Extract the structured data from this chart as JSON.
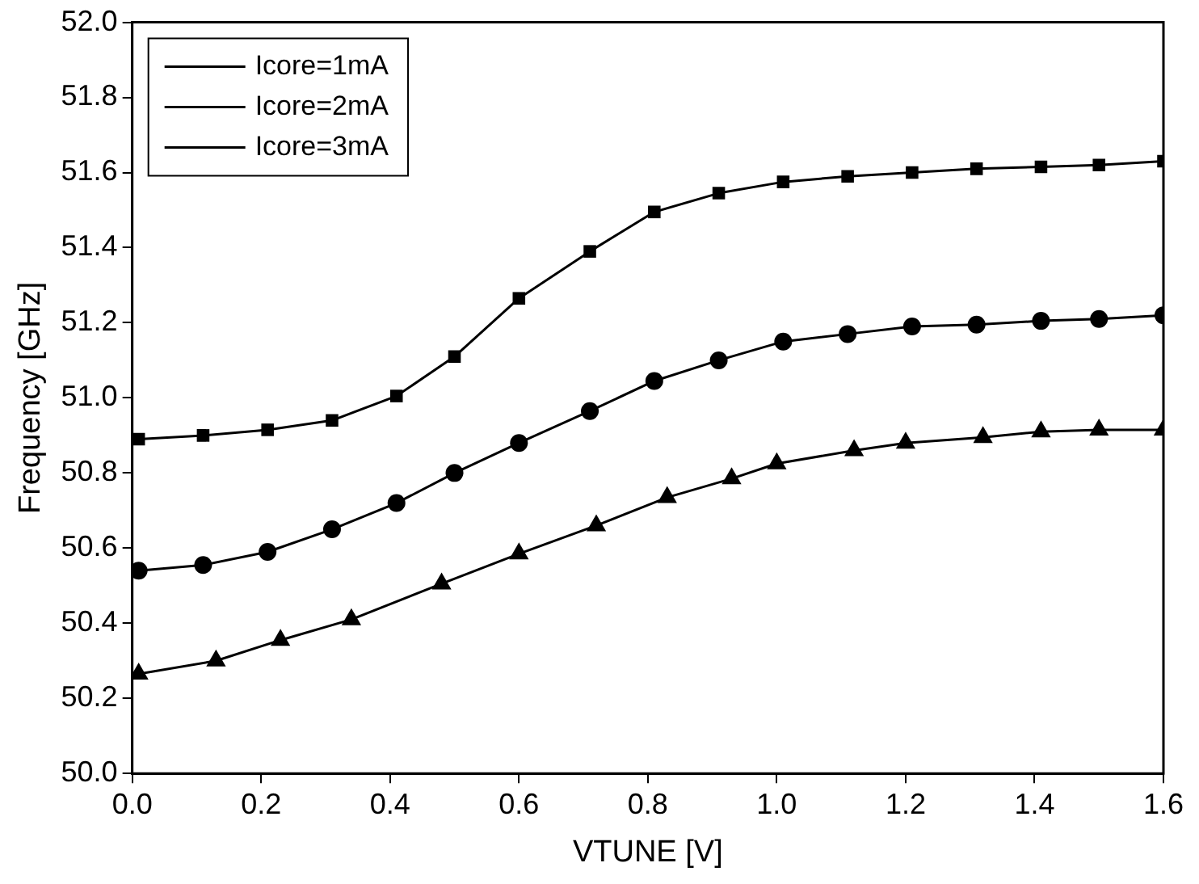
{
  "chart_data": {
    "type": "line",
    "xlabel": "VTUNE [V]",
    "ylabel": "Frequency [GHz]",
    "xlim": [
      0,
      1.6
    ],
    "xticks": [
      {
        "value": 0,
        "label": "0.0"
      },
      {
        "value": 0.2,
        "label": "0.2"
      },
      {
        "value": 0.4,
        "label": "0.4"
      },
      {
        "value": 0.6,
        "label": "0.6"
      },
      {
        "value": 0.8,
        "label": "0.8"
      },
      {
        "value": 1,
        "label": "1.0"
      },
      {
        "value": 1.2,
        "label": "1.2"
      },
      {
        "value": 1.4,
        "label": "1.4"
      },
      {
        "value": 1.6,
        "label": "1.6"
      }
    ],
    "ylim": [
      50,
      52
    ],
    "yticks": [
      {
        "value": 50,
        "label": "50.0"
      },
      {
        "value": 50.2,
        "label": "50.2"
      },
      {
        "value": 50.4,
        "label": "50.4"
      },
      {
        "value": 50.6,
        "label": "50.6"
      },
      {
        "value": 50.8,
        "label": "50.8"
      },
      {
        "value": 51,
        "label": "51.0"
      },
      {
        "value": 51.2,
        "label": "51.2"
      },
      {
        "value": 51.4,
        "label": "51.4"
      },
      {
        "value": 51.6,
        "label": "51.6"
      },
      {
        "value": 51.8,
        "label": "51.8"
      },
      {
        "value": 52,
        "label": "52.0"
      }
    ],
    "grid": false,
    "legend": "top left",
    "line_style": "solid",
    "series": [
      {
        "name": "Icore=1mA",
        "color": "#000000",
        "marker": "square",
        "x": [
          0.01,
          0.11,
          0.21,
          0.31,
          0.41,
          0.5,
          0.6,
          0.71,
          0.81,
          0.91,
          1.01,
          1.11,
          1.21,
          1.31,
          1.41,
          1.5,
          1.6
        ],
        "values": [
          50.89,
          50.9,
          50.915,
          50.94,
          51.005,
          51.11,
          51.265,
          51.39,
          51.495,
          51.545,
          51.575,
          51.59,
          51.6,
          51.61,
          51.615,
          51.62,
          51.63
        ]
      },
      {
        "name": "Icore=2mA",
        "color": "#000000",
        "marker": "circle",
        "x": [
          0.01,
          0.11,
          0.21,
          0.31,
          0.41,
          0.5,
          0.6,
          0.71,
          0.81,
          0.91,
          1.01,
          1.11,
          1.21,
          1.31,
          1.41,
          1.5,
          1.6
        ],
        "values": [
          50.54,
          50.555,
          50.59,
          50.65,
          50.72,
          50.8,
          50.88,
          50.965,
          51.045,
          51.1,
          51.15,
          51.17,
          51.19,
          51.195,
          51.205,
          51.21,
          51.22
        ]
      },
      {
        "name": "Icore=3mA",
        "color": "#000000",
        "marker": "triangle",
        "x": [
          0.01,
          0.13,
          0.23,
          0.34,
          0.48,
          0.6,
          0.72,
          0.83,
          0.93,
          1.0,
          1.12,
          1.2,
          1.32,
          1.41,
          1.5,
          1.6
        ],
        "values": [
          50.265,
          50.3,
          50.355,
          50.41,
          50.505,
          50.585,
          50.66,
          50.735,
          50.785,
          50.825,
          50.86,
          50.88,
          50.895,
          50.91,
          50.915,
          50.915
        ]
      }
    ]
  }
}
